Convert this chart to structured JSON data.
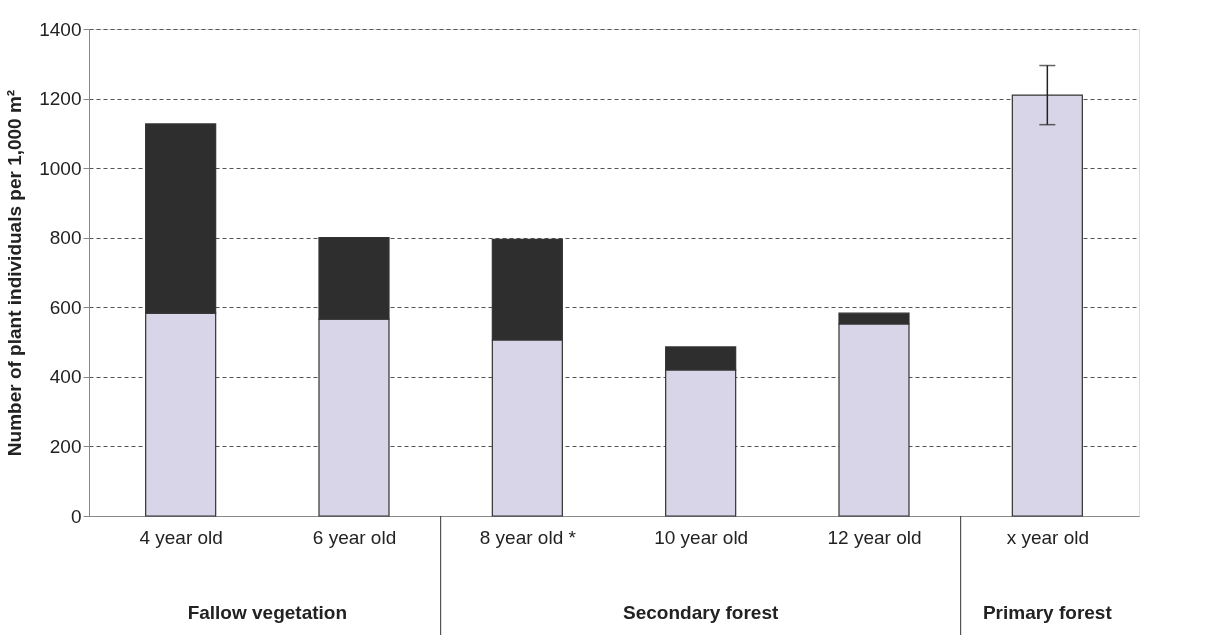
{
  "chart_data": {
    "type": "bar",
    "stacked": true,
    "ylabel": "Number of plant individuals per 1,000 m²",
    "categories": [
      "4 year old",
      "6 year old",
      "8 year old *",
      "10 year old",
      "12 year old",
      "x year old"
    ],
    "series": [
      {
        "color": "#d9d5e8",
        "values": [
          583,
          566,
          506,
          420,
          552,
          1210
        ],
        "errors": [
          null,
          null,
          null,
          null,
          null,
          [
            1125,
            1295
          ]
        ]
      },
      {
        "color": "#2e2e2e",
        "values": [
          544,
          234,
          289,
          66,
          31,
          null
        ]
      }
    ],
    "ylim": [
      0,
      1400
    ],
    "yticks": [
      0,
      200,
      400,
      600,
      800,
      1000,
      1200,
      1400
    ],
    "grid": "y",
    "annotations": [
      "Fallow vegetation",
      "Secondary forest",
      "Primary forest"
    ]
  }
}
